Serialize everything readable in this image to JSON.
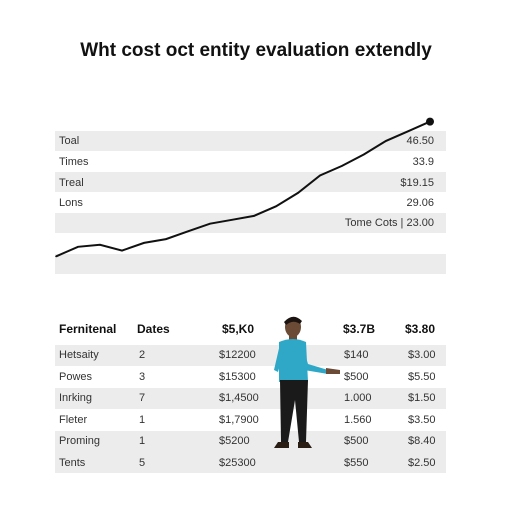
{
  "title": "Wht cost oct entity evaluation extendly",
  "summary_rows": [
    {
      "label": "Toal",
      "value": "46.50"
    },
    {
      "label": "Times",
      "value": "33.9"
    },
    {
      "label": "Treal",
      "value": "$19.15"
    },
    {
      "label": "Lons",
      "value": "29.06"
    }
  ],
  "note": "Tome Cots | 23.00",
  "chart_data": {
    "type": "line",
    "title": "",
    "xlabel": "",
    "ylabel": "",
    "x": [
      0,
      1,
      2,
      3,
      4,
      5,
      6,
      7,
      8,
      9,
      10,
      11,
      12,
      13,
      14,
      15,
      16,
      17
    ],
    "series": [
      {
        "values": [
          5,
          10,
          11,
          8,
          12,
          14,
          18,
          22,
          24,
          26,
          31,
          38,
          47,
          52,
          58,
          65,
          70,
          75
        ]
      }
    ],
    "ylim": [
      0,
      80
    ],
    "grid": false,
    "line_color": "#111111"
  },
  "table": {
    "headers": [
      "Fernitenal",
      "Dates",
      "$5,K0",
      "$3.7B",
      "$3.80"
    ],
    "rows": [
      [
        "Hetsaity",
        "2",
        "$12200",
        "$140",
        "$3.00"
      ],
      [
        "Powes",
        "3",
        "$15300",
        "$500",
        "$5.50"
      ],
      [
        "Inrking",
        "7",
        "$1,4500",
        "1.000",
        "$1.50"
      ],
      [
        "Fleter",
        "1",
        "$1,7900",
        "1.560",
        "$3.50"
      ],
      [
        "Proming",
        "1",
        "$5200",
        "$500",
        "$8.40"
      ],
      [
        "Tents",
        "5",
        "$25300",
        "$550",
        "$2.50"
      ]
    ]
  },
  "colors": {
    "shirt": "#2fa7c6",
    "pants": "#1a1a1a",
    "band": "#ececec"
  }
}
